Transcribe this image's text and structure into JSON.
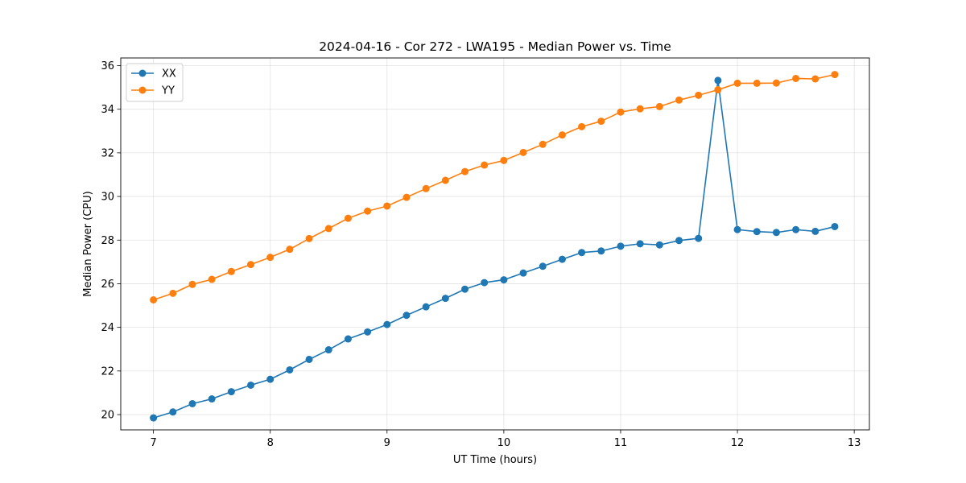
{
  "chart_data": {
    "type": "line",
    "title": "2024-04-16 - Cor 272 - LWA195 - Median Power vs. Time",
    "xlabel": "UT Time (hours)",
    "ylabel": "Median Power (CPU)",
    "xlim": [
      6.72,
      13.13
    ],
    "ylim": [
      19.3,
      36.35
    ],
    "xticks": [
      7,
      8,
      9,
      10,
      11,
      12,
      13
    ],
    "yticks": [
      20,
      22,
      24,
      26,
      28,
      30,
      32,
      34,
      36
    ],
    "grid": true,
    "legend_position": "top-left",
    "x": [
      7.0,
      7.1667,
      7.3333,
      7.5,
      7.6667,
      7.8333,
      8.0,
      8.1667,
      8.3333,
      8.5,
      8.6667,
      8.8333,
      9.0,
      9.1667,
      9.3333,
      9.5,
      9.6667,
      9.8333,
      10.0,
      10.1667,
      10.3333,
      10.5,
      10.6667,
      10.8333,
      11.0,
      11.1667,
      11.3333,
      11.5,
      11.6667,
      11.8333,
      12.0,
      12.1667,
      12.3333,
      12.5,
      12.6667,
      12.8333
    ],
    "series": [
      {
        "name": "XX",
        "color": "#1f77b4",
        "values": [
          19.85,
          20.12,
          20.5,
          20.72,
          21.05,
          21.35,
          21.62,
          22.05,
          22.53,
          22.97,
          23.47,
          23.79,
          24.13,
          24.55,
          24.94,
          25.33,
          25.75,
          26.05,
          26.18,
          26.49,
          26.8,
          27.12,
          27.43,
          27.5,
          27.72,
          27.83,
          27.78,
          27.98,
          28.08,
          35.32,
          28.48,
          28.39,
          28.35,
          28.48,
          28.4,
          28.62
        ]
      },
      {
        "name": "YY",
        "color": "#ff7f0e",
        "values": [
          25.26,
          25.56,
          25.97,
          26.2,
          26.56,
          26.88,
          27.21,
          27.58,
          28.07,
          28.53,
          29.0,
          29.33,
          29.56,
          29.96,
          30.36,
          30.74,
          31.14,
          31.44,
          31.65,
          32.02,
          32.39,
          32.82,
          33.2,
          33.45,
          33.87,
          34.02,
          34.12,
          34.42,
          34.64,
          34.89,
          35.19,
          35.19,
          35.2,
          35.41,
          35.39,
          35.59
        ]
      }
    ]
  }
}
